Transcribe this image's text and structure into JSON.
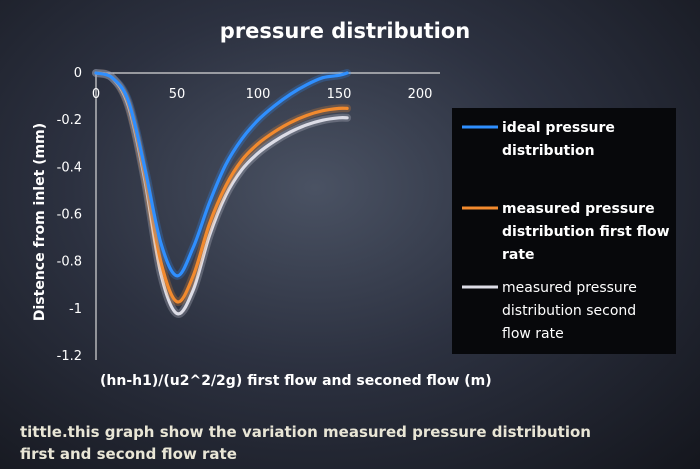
{
  "chart_data": {
    "type": "line",
    "title": "pressure distribution",
    "xlabel": "(hn-h1)/(u2^2/2g)  first flow and seconed flow (m)",
    "ylabel": "Distence from inlet (mm)",
    "xlim": [
      0,
      200
    ],
    "ylim": [
      -1.2,
      0
    ],
    "xticks": [
      "0",
      "50",
      "100",
      "150",
      "200"
    ],
    "yticks": [
      "0",
      "-0.2",
      "-0.4",
      "-0.6",
      "-0.8",
      "-1",
      "-1.2"
    ],
    "grid": false,
    "legend_position": "right",
    "series": [
      {
        "name": "ideal pressure distribution",
        "color": "#2f8fff",
        "x": [
          0,
          10,
          20,
          30,
          40,
          50,
          60,
          70,
          80,
          90,
          100,
          110,
          120,
          130,
          140,
          150,
          155
        ],
        "y": [
          0,
          -0.02,
          -0.12,
          -0.4,
          -0.72,
          -0.86,
          -0.74,
          -0.55,
          -0.39,
          -0.28,
          -0.2,
          -0.14,
          -0.09,
          -0.05,
          -0.02,
          -0.01,
          0
        ]
      },
      {
        "name": "measured pressure distribution first flow rate",
        "color": "#f28a2e",
        "x": [
          0,
          10,
          20,
          30,
          40,
          50,
          60,
          70,
          80,
          90,
          100,
          110,
          120,
          130,
          140,
          150,
          155
        ],
        "y": [
          0,
          -0.02,
          -0.13,
          -0.43,
          -0.8,
          -0.97,
          -0.86,
          -0.64,
          -0.48,
          -0.37,
          -0.3,
          -0.25,
          -0.21,
          -0.18,
          -0.16,
          -0.15,
          -0.15
        ]
      },
      {
        "name": "measured pressure distribution second flow rate",
        "color": "#dcdce6",
        "x": [
          0,
          10,
          20,
          30,
          40,
          50,
          60,
          70,
          80,
          90,
          100,
          110,
          120,
          130,
          140,
          150,
          155
        ],
        "y": [
          0,
          -0.02,
          -0.14,
          -0.45,
          -0.85,
          -1.02,
          -0.92,
          -0.69,
          -0.52,
          -0.41,
          -0.34,
          -0.29,
          -0.25,
          -0.22,
          -0.2,
          -0.19,
          -0.19
        ]
      }
    ]
  },
  "legend": {
    "s1_line1": "ideal pressure",
    "s1_line2": "distribution",
    "s2_line1": "measured pressure",
    "s2_line2": "distribution first flow",
    "s2_line3": "rate",
    "s3_line1": "measured pressure",
    "s3_line2": "distribution second",
    "s3_line3": "flow rate"
  },
  "caption": {
    "line1": "tittle.this graph show the variation measured pressure distribution",
    "line2": "first and second flow rate"
  }
}
